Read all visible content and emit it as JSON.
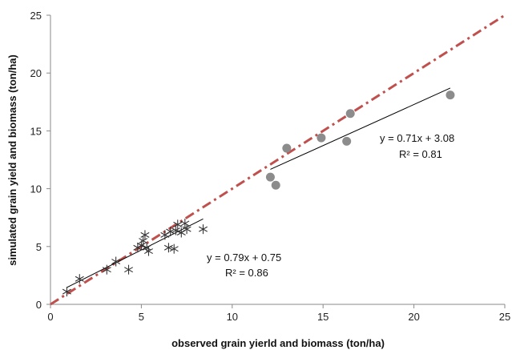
{
  "chart_data": {
    "type": "scatter",
    "xlabel": "observed  grain yierld and biomass (ton/ha)",
    "ylabel": "simulated grain yield and biomass (ton/ha)",
    "xlim": [
      0,
      25
    ],
    "ylim": [
      0,
      25
    ],
    "x_ticks": [
      "0",
      "5",
      "10",
      "15",
      "20",
      "25"
    ],
    "y_ticks": [
      "0",
      "5",
      "10",
      "15",
      "20",
      "25"
    ],
    "grid": false,
    "legend": "none",
    "series": [
      {
        "marker": "star",
        "color": "#333333",
        "points": [
          [
            0.9,
            1.1
          ],
          [
            1.6,
            2.2
          ],
          [
            3.1,
            3.0
          ],
          [
            3.6,
            3.7
          ],
          [
            4.3,
            3.0
          ],
          [
            4.8,
            4.9
          ],
          [
            5.0,
            5.1
          ],
          [
            5.1,
            5.5
          ],
          [
            5.2,
            6.0
          ],
          [
            5.3,
            4.9
          ],
          [
            5.4,
            4.6
          ],
          [
            6.3,
            6.0
          ],
          [
            6.5,
            4.9
          ],
          [
            6.6,
            6.3
          ],
          [
            6.8,
            4.8
          ],
          [
            6.9,
            6.4
          ],
          [
            7.0,
            6.9
          ],
          [
            7.2,
            6.2
          ],
          [
            7.4,
            7.0
          ],
          [
            7.5,
            6.5
          ],
          [
            8.4,
            6.5
          ]
        ]
      },
      {
        "marker": "circle",
        "color": "#8c8c8c",
        "points": [
          [
            12.1,
            11.0
          ],
          [
            12.4,
            10.3
          ],
          [
            13.0,
            13.5
          ],
          [
            14.9,
            14.4
          ],
          [
            16.3,
            14.1
          ],
          [
            16.5,
            16.5
          ],
          [
            22.0,
            18.1
          ]
        ]
      }
    ],
    "trendlines": [
      {
        "slope": 0.79,
        "intercept": 0.75,
        "x_range": [
          0.9,
          8.4
        ],
        "color": "#000000",
        "equation": "y = 0.79x + 0.75",
        "r2": "R² = 0.86"
      },
      {
        "slope": 0.71,
        "intercept": 3.08,
        "x_range": [
          12.1,
          22.0
        ],
        "color": "#000000",
        "equation": "y = 0.71x + 3.08",
        "r2": "R² = 0.81"
      }
    ],
    "one_to_one_line": {
      "x_range": [
        0,
        25
      ],
      "color": "#c0504d",
      "style": "dash-dot"
    }
  }
}
